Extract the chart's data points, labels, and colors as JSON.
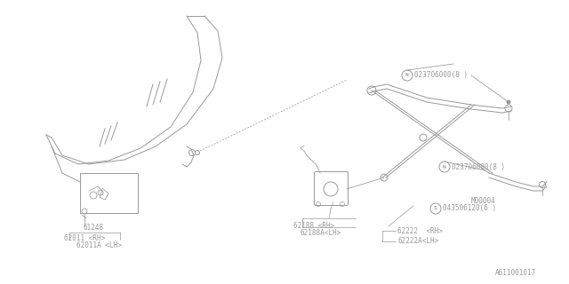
{
  "bg_color": "#ffffff",
  "diagram_color": "#999999",
  "lw": 0.7,
  "fs": 5.5,
  "footer": "A611001017",
  "n_label_1": "023706000(8 )",
  "n_label_2": "023706000(8 )",
  "s_label": "043506120(6 )",
  "m_label": "M00004",
  "p61248": "61248",
  "p62011rh": "62011 <RH>",
  "p62011lh": "62011A <LH>",
  "p62188rh": "62188 <RH>",
  "p62188lh": "62188A<LH>",
  "p62222rh": "62222  <RH>",
  "p62222lh": "62222A<LH>"
}
